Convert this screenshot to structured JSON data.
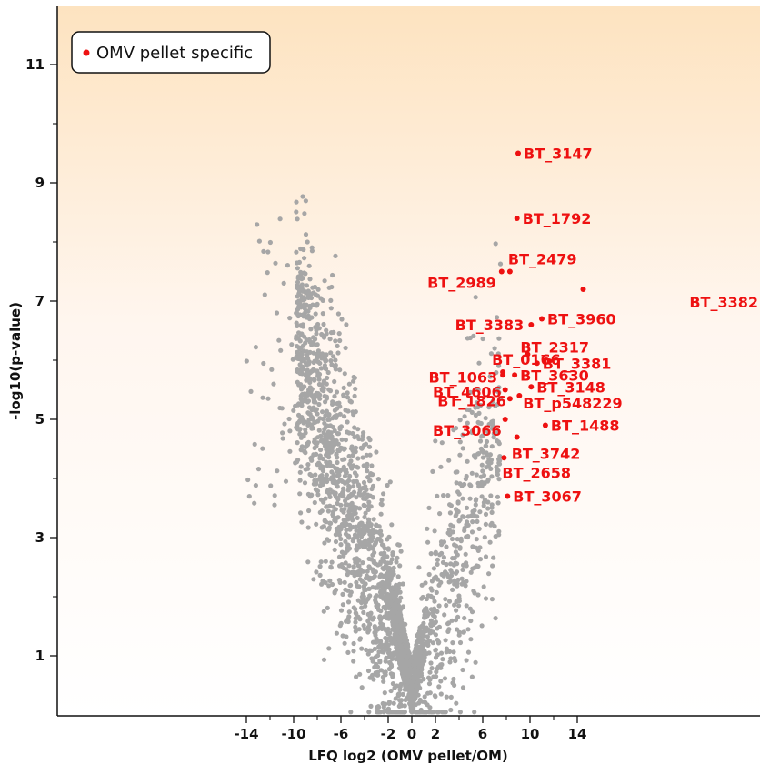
{
  "chart_data": {
    "type": "scatter",
    "title": "",
    "xlabel": "LFQ log2 (OMV pellet/OM)",
    "ylabel": "-log10(p-value)",
    "xlim": [
      -15,
      15
    ],
    "ylim": [
      0,
      12
    ],
    "xticks": [
      -14,
      -10,
      -6,
      -2,
      0,
      2,
      6,
      10,
      14
    ],
    "xminor_ticks": [
      -12,
      -8,
      -4,
      4,
      8,
      12
    ],
    "yticks": [
      1,
      3,
      5,
      7,
      9,
      11
    ],
    "yminor_ticks": [
      2,
      4,
      6,
      8,
      10
    ],
    "grid": false,
    "background_gradient": {
      "top": "#fde3c0",
      "bottom": "#ffffff"
    },
    "legend": {
      "position": "top-left",
      "entries": [
        {
          "label": "OMV pellet specific",
          "color": "#ee1111"
        }
      ]
    },
    "background_points": {
      "color": "#a6a6a6",
      "note": "approximately 3000 other proteins forming a V-shaped volcano distribution (not individually labeled)"
    },
    "series": [
      {
        "name": "OMV pellet specific",
        "color": "#ee1111",
        "points": [
          {
            "label": "BT_3147",
            "x": 9.0,
            "y": 9.5
          },
          {
            "label": "BT_1792",
            "x": 8.9,
            "y": 8.4
          },
          {
            "label": "BT_2479",
            "x": 8.3,
            "y": 7.5
          },
          {
            "label": "BT_2989",
            "x": 7.6,
            "y": 7.5
          },
          {
            "label": "BT_3382",
            "x": 14.5,
            "y": 7.2
          },
          {
            "label": "BT_3383",
            "x": 10.1,
            "y": 6.6
          },
          {
            "label": "BT_3960",
            "x": 11.0,
            "y": 6.7
          },
          {
            "label": "BT_2317",
            "x": 9.8,
            "y": 6.1
          },
          {
            "label": "BT_0166",
            "x": 7.7,
            "y": 5.8
          },
          {
            "label": "BT_3381",
            "x": 10.6,
            "y": 5.95
          },
          {
            "label": "BT_1063",
            "x": 7.7,
            "y": 5.75
          },
          {
            "label": "BT_3630",
            "x": 8.7,
            "y": 5.75
          },
          {
            "label": "BT_4606",
            "x": 7.9,
            "y": 5.5
          },
          {
            "label": "BT_3148",
            "x": 10.1,
            "y": 5.55
          },
          {
            "label": "BT_1826",
            "x": 8.3,
            "y": 5.35
          },
          {
            "label": "BT_p548229",
            "x": 9.1,
            "y": 5.4
          },
          {
            "label": "BT_3066",
            "x": 7.9,
            "y": 5.0
          },
          {
            "label": "BT_1488",
            "x": 11.3,
            "y": 4.9
          },
          {
            "label": "BT_3742",
            "x": 8.9,
            "y": 4.7
          },
          {
            "label": "BT_2658",
            "x": 7.8,
            "y": 4.35
          },
          {
            "label": "BT_3067",
            "x": 8.1,
            "y": 3.7
          }
        ]
      }
    ]
  }
}
